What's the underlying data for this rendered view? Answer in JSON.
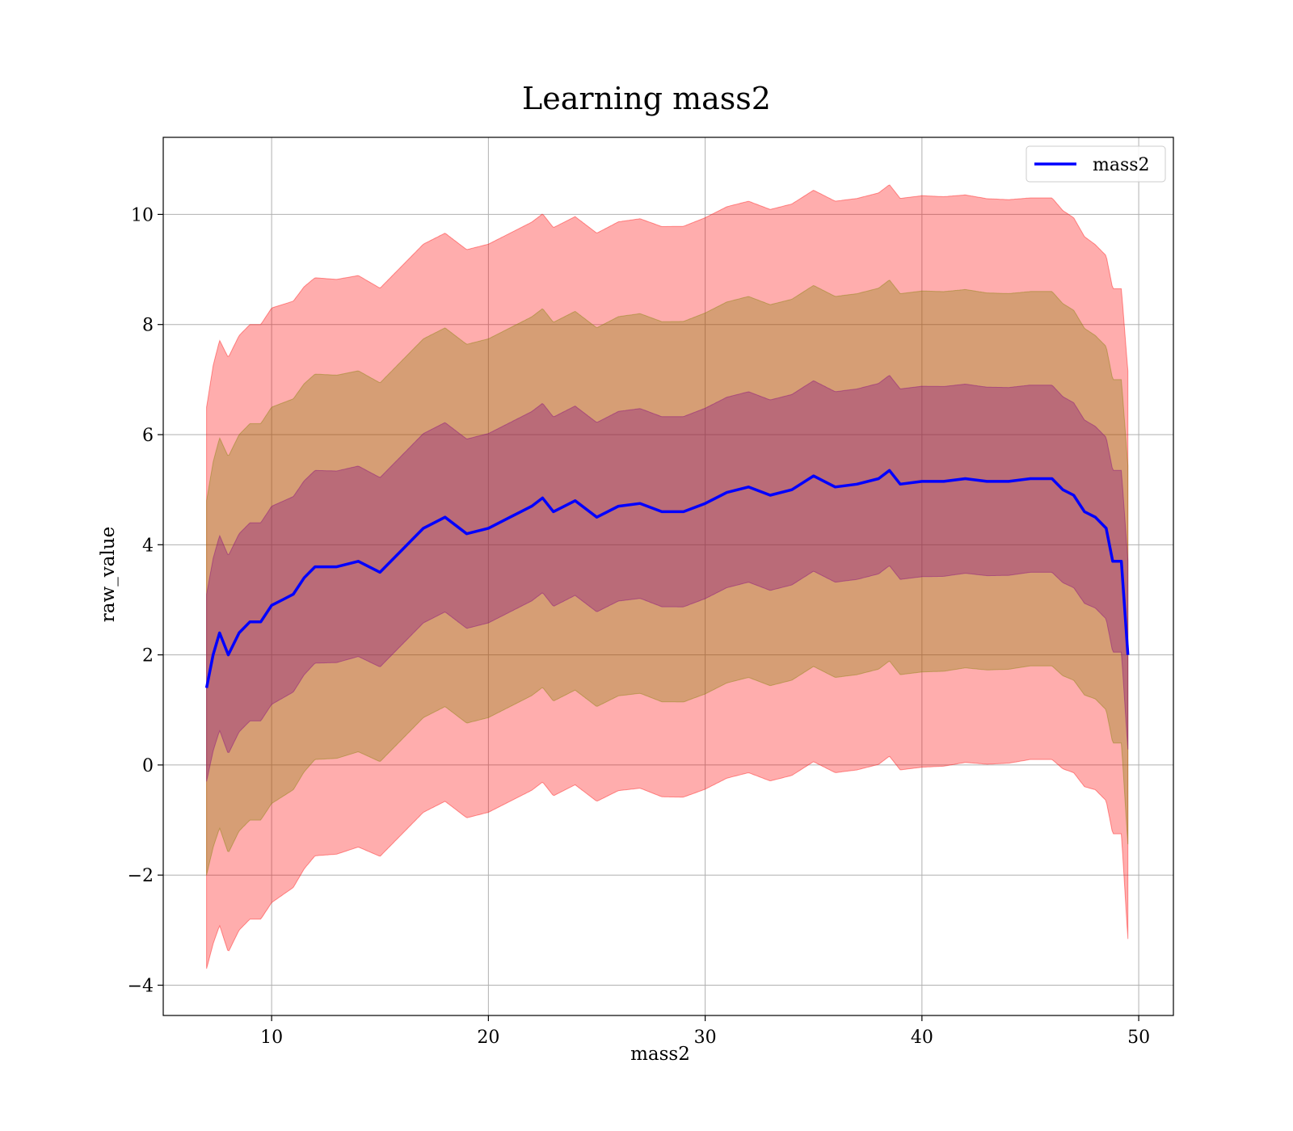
{
  "chart_data": {
    "type": "line",
    "title": "Learning mass2",
    "xlabel": "mass2",
    "ylabel": "raw_value",
    "xlim": [
      5.0,
      51.6
    ],
    "ylim": [
      -4.55,
      11.4
    ],
    "xticks": [
      10,
      20,
      30,
      40,
      50
    ],
    "yticks": [
      -4,
      -2,
      0,
      2,
      4,
      6,
      8,
      10
    ],
    "xtick_labels": [
      "10",
      "20",
      "30",
      "40",
      "50"
    ],
    "ytick_labels": [
      "−4",
      "−2",
      "0",
      "2",
      "4",
      "6",
      "8",
      "10"
    ],
    "grid": true,
    "legend": {
      "location": "top-right",
      "entries": [
        "mass2"
      ]
    },
    "series": [
      {
        "name": "mass2",
        "color": "#0000ff",
        "x": [
          7.0,
          7.3,
          7.6,
          8.0,
          8.5,
          9.0,
          9.5,
          10.0,
          10.5,
          11.0,
          11.5,
          12.0,
          13.0,
          14.0,
          15.0,
          16.0,
          17.0,
          18.0,
          19.0,
          20.0,
          21.0,
          22.0,
          22.5,
          23.0,
          24.0,
          25.0,
          26.0,
          27.0,
          28.0,
          29.0,
          30.0,
          31.0,
          32.0,
          33.0,
          34.0,
          35.0,
          36.0,
          37.0,
          38.0,
          38.5,
          39.0,
          40.0,
          41.0,
          42.0,
          43.0,
          44.0,
          45.0,
          46.0,
          46.5,
          47.0,
          47.5,
          48.0,
          48.5,
          48.8,
          49.2,
          49.5
        ],
        "y": [
          1.4,
          2.0,
          2.4,
          2.0,
          2.4,
          2.6,
          2.6,
          2.9,
          3.0,
          3.1,
          3.4,
          3.6,
          3.6,
          3.7,
          3.5,
          3.9,
          4.3,
          4.5,
          4.2,
          4.3,
          4.5,
          4.7,
          4.85,
          4.6,
          4.8,
          4.5,
          4.7,
          4.75,
          4.6,
          4.6,
          4.75,
          4.95,
          5.05,
          4.9,
          5.0,
          5.25,
          5.05,
          5.1,
          5.2,
          5.35,
          5.1,
          5.15,
          5.15,
          5.2,
          5.15,
          5.15,
          5.2,
          5.2,
          5.0,
          4.9,
          4.6,
          4.5,
          4.3,
          3.7,
          3.7,
          2.0
        ]
      }
    ],
    "bands": [
      {
        "name": "3-sigma",
        "color": "#ff0000",
        "opacity": 0.32,
        "sigma": 3
      },
      {
        "name": "2-sigma",
        "color": "#808000",
        "opacity": 0.32,
        "sigma": 2
      },
      {
        "name": "1-sigma",
        "color": "#800080",
        "opacity": 0.32,
        "sigma": 1
      }
    ],
    "std": {
      "x": [
        7.0,
        7.3,
        8.0,
        10.0,
        12.0,
        15.0,
        20.0,
        25.0,
        30.0,
        35.0,
        40.0,
        45.0,
        46.0,
        47.0,
        48.0,
        48.8,
        49.2,
        49.5
      ],
      "y": [
        1.7,
        1.75,
        1.8,
        1.8,
        1.75,
        1.72,
        1.72,
        1.72,
        1.73,
        1.73,
        1.73,
        1.7,
        1.7,
        1.68,
        1.65,
        1.65,
        1.65,
        1.72
      ]
    }
  }
}
